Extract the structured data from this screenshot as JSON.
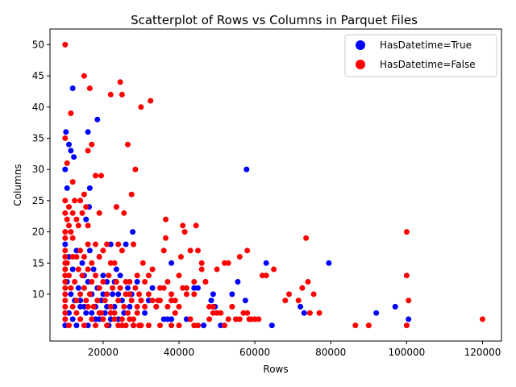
{
  "chart_data": {
    "type": "scatter",
    "title": "Scatterplot of Rows vs Columns in Parquet Files",
    "xlabel": "Rows",
    "ylabel": "Columns",
    "xlim": [
      6000,
      125000
    ],
    "ylim": [
      2.5,
      52.5
    ],
    "x_ticks": [
      20000,
      40000,
      60000,
      80000,
      100000,
      120000
    ],
    "x_tick_labels": [
      "20000",
      "40000",
      "60000",
      "80000",
      "100000",
      "120000"
    ],
    "y_ticks": [
      10,
      15,
      20,
      25,
      30,
      35,
      40,
      45,
      50
    ],
    "y_tick_labels": [
      "10",
      "15",
      "20",
      "25",
      "30",
      "35",
      "40",
      "45",
      "50"
    ],
    "grid": false,
    "legend_position": "top-right",
    "series": [
      {
        "name": "HasDatetime=True",
        "color": "#0000ff",
        "points": [
          [
            10000,
            30
          ],
          [
            10200,
            36
          ],
          [
            10500,
            27
          ],
          [
            11000,
            34
          ],
          [
            11500,
            33
          ],
          [
            12000,
            43
          ],
          [
            12300,
            32
          ],
          [
            15500,
            22
          ],
          [
            16000,
            36
          ],
          [
            16300,
            24
          ],
          [
            16500,
            27
          ],
          [
            18500,
            38
          ],
          [
            27800,
            20
          ],
          [
            57800,
            30
          ],
          [
            79500,
            15
          ],
          [
            63000,
            15
          ],
          [
            55500,
            12
          ],
          [
            54000,
            10
          ],
          [
            57500,
            9
          ],
          [
            48500,
            9
          ],
          [
            49000,
            10
          ],
          [
            45000,
            11
          ],
          [
            38000,
            15
          ],
          [
            46500,
            5
          ],
          [
            55000,
            6
          ],
          [
            64500,
            5
          ],
          [
            49500,
            8
          ],
          [
            51000,
            5
          ],
          [
            72000,
            8
          ],
          [
            73000,
            7
          ],
          [
            92000,
            7
          ],
          [
            97000,
            8
          ],
          [
            100500,
            6
          ],
          [
            10000,
            18
          ],
          [
            10500,
            12
          ],
          [
            11000,
            16
          ],
          [
            11500,
            10
          ],
          [
            12000,
            14
          ],
          [
            12500,
            9
          ],
          [
            13000,
            17
          ],
          [
            13500,
            11
          ],
          [
            14000,
            8
          ],
          [
            14500,
            15
          ],
          [
            15000,
            13
          ],
          [
            15500,
            7
          ],
          [
            16000,
            12
          ],
          [
            16500,
            17
          ],
          [
            17000,
            10
          ],
          [
            17500,
            14
          ],
          [
            18000,
            6
          ],
          [
            18500,
            11
          ],
          [
            19000,
            16
          ],
          [
            19500,
            9
          ],
          [
            20000,
            13
          ],
          [
            20500,
            7
          ],
          [
            21000,
            12
          ],
          [
            21500,
            5
          ],
          [
            22000,
            18
          ],
          [
            22500,
            10
          ],
          [
            23000,
            8
          ],
          [
            23500,
            14
          ],
          [
            24000,
            6
          ],
          [
            24500,
            13
          ],
          [
            25000,
            9
          ],
          [
            25500,
            7
          ],
          [
            26000,
            18
          ],
          [
            26500,
            11
          ],
          [
            27000,
            8
          ],
          [
            27500,
            10
          ],
          [
            28000,
            5
          ],
          [
            29000,
            12
          ],
          [
            30000,
            9
          ],
          [
            31000,
            7
          ],
          [
            32000,
            9
          ],
          [
            33000,
            11
          ],
          [
            34000,
            8
          ],
          [
            36000,
            6
          ],
          [
            37000,
            6
          ],
          [
            38000,
            6
          ],
          [
            42000,
            6
          ],
          [
            44000,
            11
          ],
          [
            10000,
            5
          ],
          [
            11000,
            7
          ],
          [
            12000,
            6
          ],
          [
            13000,
            5
          ],
          [
            14000,
            9
          ],
          [
            15000,
            8
          ],
          [
            16000,
            5
          ],
          [
            17000,
            7
          ],
          [
            18000,
            8
          ],
          [
            19000,
            6
          ],
          [
            20000,
            10
          ],
          [
            21000,
            8
          ],
          [
            22000,
            6
          ],
          [
            23000,
            12
          ],
          [
            24000,
            10
          ]
        ]
      },
      {
        "name": "HasDatetime=False",
        "color": "#ff0000",
        "points": [
          [
            10000,
            50
          ],
          [
            10000,
            35
          ],
          [
            10500,
            31
          ],
          [
            11500,
            39
          ],
          [
            12000,
            28
          ],
          [
            15000,
            45
          ],
          [
            16500,
            43
          ],
          [
            16000,
            33
          ],
          [
            17000,
            34
          ],
          [
            18000,
            29
          ],
          [
            19500,
            29
          ],
          [
            22000,
            42
          ],
          [
            24500,
            44
          ],
          [
            25000,
            42
          ],
          [
            26500,
            34
          ],
          [
            28500,
            30
          ],
          [
            30000,
            40
          ],
          [
            32500,
            41
          ],
          [
            23500,
            24
          ],
          [
            27500,
            26
          ],
          [
            19000,
            23
          ],
          [
            25500,
            23
          ],
          [
            36500,
            22
          ],
          [
            41000,
            21
          ],
          [
            44500,
            21
          ],
          [
            36500,
            19
          ],
          [
            73500,
            19
          ],
          [
            100000,
            20
          ],
          [
            100000,
            13
          ],
          [
            100500,
            9
          ],
          [
            120000,
            6
          ],
          [
            86500,
            5
          ],
          [
            90000,
            5
          ],
          [
            100000,
            5
          ],
          [
            71500,
            9
          ],
          [
            72500,
            11
          ],
          [
            74000,
            12
          ],
          [
            75500,
            10
          ],
          [
            77000,
            7
          ],
          [
            74500,
            7
          ],
          [
            69000,
            10
          ],
          [
            68000,
            9
          ],
          [
            65000,
            14
          ],
          [
            63000,
            13
          ],
          [
            62000,
            13
          ],
          [
            61000,
            6
          ],
          [
            58500,
            6
          ],
          [
            58000,
            17
          ],
          [
            56000,
            16
          ],
          [
            53000,
            15
          ],
          [
            52000,
            15
          ],
          [
            50000,
            14
          ],
          [
            49000,
            8
          ],
          [
            48000,
            8
          ],
          [
            47000,
            12
          ],
          [
            46000,
            15
          ],
          [
            45000,
            17
          ],
          [
            44000,
            12
          ],
          [
            43000,
            17
          ],
          [
            42000,
            10
          ],
          [
            41500,
            20
          ],
          [
            40500,
            16
          ],
          [
            40000,
            13
          ],
          [
            39000,
            9
          ],
          [
            38000,
            10
          ],
          [
            37000,
            12
          ],
          [
            36000,
            17
          ],
          [
            35000,
            11
          ],
          [
            34500,
            9
          ],
          [
            33000,
            14
          ],
          [
            32000,
            13
          ],
          [
            31000,
            12
          ],
          [
            30500,
            15
          ],
          [
            29500,
            10
          ],
          [
            29000,
            13
          ],
          [
            28000,
            18
          ],
          [
            27000,
            10
          ],
          [
            26000,
            12
          ],
          [
            25000,
            17
          ],
          [
            24000,
            18
          ],
          [
            23000,
            15
          ],
          [
            22000,
            15
          ],
          [
            21000,
            18
          ],
          [
            20000,
            17
          ],
          [
            19000,
            16
          ],
          [
            18000,
            18
          ],
          [
            17000,
            15
          ],
          [
            16000,
            18
          ],
          [
            15000,
            16
          ],
          [
            14000,
            17
          ],
          [
            13000,
            16
          ],
          [
            12000,
            23
          ],
          [
            11000,
            24
          ],
          [
            10000,
            25
          ],
          [
            10000,
            23
          ],
          [
            10500,
            22
          ],
          [
            11000,
            21
          ],
          [
            11500,
            20
          ],
          [
            12000,
            19
          ],
          [
            12500,
            25
          ],
          [
            13000,
            22
          ],
          [
            13500,
            21
          ],
          [
            14000,
            25
          ],
          [
            14500,
            23
          ],
          [
            15000,
            26
          ],
          [
            15500,
            24
          ],
          [
            16000,
            21
          ],
          [
            10000,
            20
          ],
          [
            10000,
            19
          ],
          [
            10000,
            17
          ],
          [
            10000,
            16
          ],
          [
            10000,
            15
          ],
          [
            10000,
            14
          ],
          [
            10000,
            13
          ],
          [
            10000,
            12
          ],
          [
            10000,
            11
          ],
          [
            10000,
            10
          ],
          [
            10000,
            9
          ],
          [
            10000,
            8
          ],
          [
            10000,
            7
          ],
          [
            10000,
            6
          ],
          [
            10500,
            15
          ],
          [
            11000,
            13
          ],
          [
            11500,
            11
          ],
          [
            12000,
            16
          ],
          [
            12500,
            12
          ],
          [
            13000,
            9
          ],
          [
            13500,
            14
          ],
          [
            14000,
            10
          ],
          [
            14500,
            13
          ],
          [
            15000,
            11
          ],
          [
            15500,
            9
          ],
          [
            16000,
            14
          ],
          [
            16500,
            10
          ],
          [
            17000,
            12
          ],
          [
            17500,
            8
          ],
          [
            18000,
            13
          ],
          [
            18500,
            9
          ],
          [
            19000,
            11
          ],
          [
            19500,
            7
          ],
          [
            20000,
            12
          ],
          [
            20500,
            9
          ],
          [
            21000,
            10
          ],
          [
            21500,
            13
          ],
          [
            22000,
            8
          ],
          [
            22500,
            11
          ],
          [
            23000,
            7
          ],
          [
            23500,
            12
          ],
          [
            24000,
            9
          ],
          [
            24500,
            11
          ],
          [
            25000,
            6
          ],
          [
            25500,
            8
          ],
          [
            26000,
            10
          ],
          [
            26500,
            7
          ],
          [
            27000,
            12
          ],
          [
            27500,
            9
          ],
          [
            28000,
            6
          ],
          [
            28500,
            11
          ],
          [
            29000,
            8
          ],
          [
            29500,
            5
          ],
          [
            30000,
            9
          ],
          [
            31000,
            8
          ],
          [
            32000,
            10
          ],
          [
            33000,
            9
          ],
          [
            34000,
            8
          ],
          [
            35000,
            9
          ],
          [
            36000,
            11
          ],
          [
            37000,
            8
          ],
          [
            38000,
            9
          ],
          [
            39000,
            7
          ],
          [
            40000,
            8
          ],
          [
            41000,
            11
          ],
          [
            42000,
            11
          ],
          [
            43000,
            6
          ],
          [
            44000,
            10
          ],
          [
            45000,
            5
          ],
          [
            46000,
            14
          ],
          [
            47000,
            12
          ],
          [
            48000,
            6
          ],
          [
            49000,
            7
          ],
          [
            50000,
            7
          ],
          [
            51000,
            7
          ],
          [
            52000,
            5
          ],
          [
            53000,
            6
          ],
          [
            54000,
            8
          ],
          [
            55000,
            6
          ],
          [
            56000,
            6
          ],
          [
            57000,
            7
          ],
          [
            58000,
            7
          ],
          [
            59000,
            6
          ],
          [
            60000,
            6
          ],
          [
            11000,
            5
          ],
          [
            12000,
            8
          ],
          [
            13000,
            7
          ],
          [
            14000,
            6
          ],
          [
            15000,
            5
          ],
          [
            16000,
            8
          ],
          [
            17000,
            6
          ],
          [
            18000,
            5
          ],
          [
            19000,
            7
          ],
          [
            20000,
            6
          ],
          [
            21000,
            5
          ],
          [
            22000,
            7
          ],
          [
            23000,
            6
          ],
          [
            24000,
            5
          ],
          [
            25000,
            5
          ],
          [
            26000,
            5
          ],
          [
            27000,
            6
          ],
          [
            28000,
            5
          ],
          [
            29000,
            7
          ],
          [
            30000,
            5
          ],
          [
            32000,
            5
          ],
          [
            35000,
            5
          ],
          [
            38000,
            5
          ],
          [
            40000,
            5
          ],
          [
            44000,
            5
          ]
        ]
      }
    ]
  }
}
